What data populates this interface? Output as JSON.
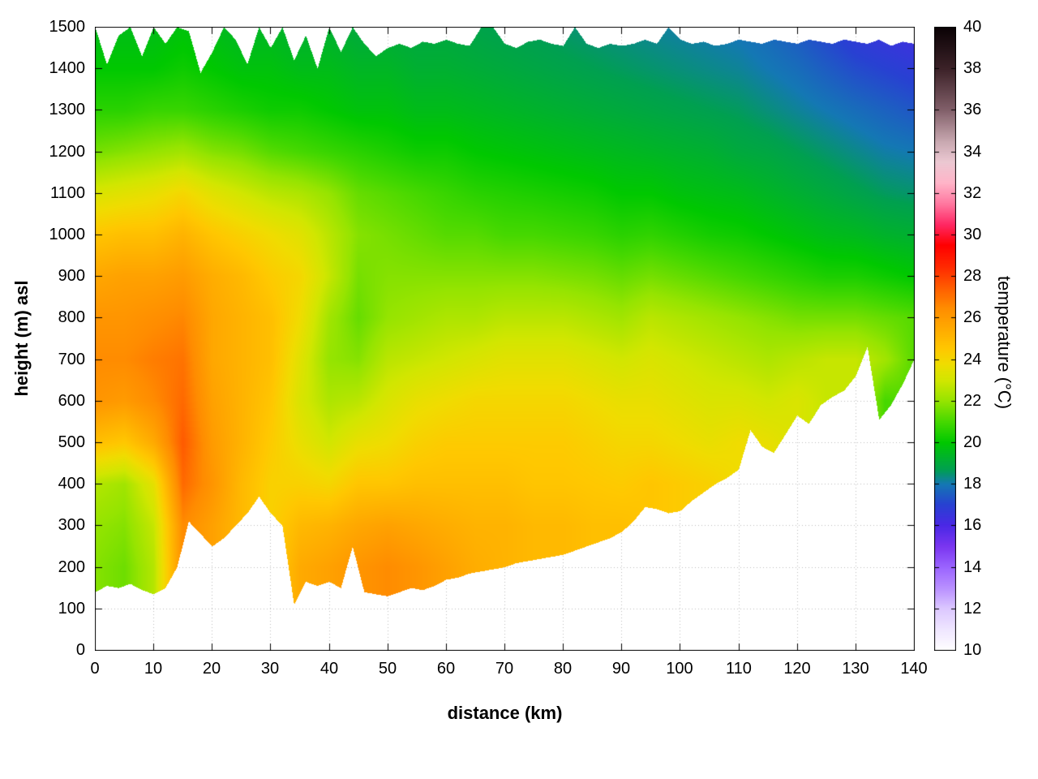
{
  "chart_data": {
    "type": "heatmap",
    "title": "",
    "xlabel": "distance (km)",
    "ylabel": "height (m) asl",
    "colorbar_label": "temperature (°C)",
    "xlim": [
      0,
      140
    ],
    "ylim": [
      0,
      1500
    ],
    "clim": [
      10,
      40
    ],
    "grid": true,
    "x_ticks": [
      0,
      10,
      20,
      30,
      40,
      50,
      60,
      70,
      80,
      90,
      100,
      110,
      120,
      130,
      140
    ],
    "y_ticks": [
      0,
      100,
      200,
      300,
      400,
      500,
      600,
      700,
      800,
      900,
      1000,
      1100,
      1200,
      1300,
      1400,
      1500
    ],
    "cb_ticks": [
      10,
      12,
      14,
      16,
      18,
      20,
      22,
      24,
      26,
      28,
      30,
      32,
      34,
      36,
      38,
      40
    ],
    "palette": [
      [
        10,
        "#ffffff"
      ],
      [
        11,
        "#efe6ff"
      ],
      [
        12,
        "#dcc8ff"
      ],
      [
        13,
        "#b990ff"
      ],
      [
        14,
        "#9b64ff"
      ],
      [
        15,
        "#7a36f0"
      ],
      [
        16,
        "#4b28e6"
      ],
      [
        17,
        "#2841d2"
      ],
      [
        18,
        "#1478b4"
      ],
      [
        18.7,
        "#00a050"
      ],
      [
        20,
        "#00c800"
      ],
      [
        21,
        "#46d800"
      ],
      [
        22,
        "#96e400"
      ],
      [
        23,
        "#d2e600"
      ],
      [
        23.8,
        "#f0dc00"
      ],
      [
        24.5,
        "#ffc800"
      ],
      [
        25.5,
        "#ffaa00"
      ],
      [
        26.5,
        "#ff8c00"
      ],
      [
        27.5,
        "#ff5a00"
      ],
      [
        28.5,
        "#ff2800"
      ],
      [
        29.5,
        "#ff0000"
      ],
      [
        30.5,
        "#ff2864"
      ],
      [
        31.5,
        "#ff78a0"
      ],
      [
        32.5,
        "#ffb4c8"
      ],
      [
        33.5,
        "#ecc8d2"
      ],
      [
        34.5,
        "#c8a8b0"
      ],
      [
        36,
        "#82606a"
      ],
      [
        38,
        "#3c2228"
      ],
      [
        40,
        "#0a0205"
      ]
    ],
    "x": [
      0,
      5,
      10,
      15,
      20,
      25,
      30,
      35,
      40,
      45,
      50,
      55,
      60,
      65,
      70,
      75,
      80,
      85,
      90,
      95,
      100,
      105,
      110,
      115,
      120,
      125,
      130,
      135,
      140
    ],
    "z": [
      0,
      100,
      200,
      300,
      400,
      500,
      600,
      700,
      800,
      900,
      1000,
      1100,
      1200,
      1300,
      1400,
      1500
    ],
    "temps": [
      [
        null,
        null,
        21.8,
        22.0,
        22.5,
        24.8,
        26.2,
        26.5,
        26.2,
        25.6,
        24.6,
        23.2,
        21.6,
        20.6,
        20.0,
        19.6
      ],
      [
        null,
        null,
        21.5,
        21.8,
        22.2,
        24.5,
        26.0,
        26.5,
        26.2,
        25.8,
        24.8,
        23.4,
        21.8,
        20.6,
        20.0,
        19.6
      ],
      [
        null,
        null,
        22.5,
        22.8,
        23.5,
        25.5,
        26.5,
        26.8,
        26.4,
        25.8,
        24.8,
        23.6,
        22.0,
        20.8,
        20.0,
        19.6
      ],
      [
        null,
        null,
        null,
        26.5,
        27.2,
        27.5,
        27.2,
        27.0,
        26.6,
        26.0,
        25.2,
        24.0,
        22.2,
        20.8,
        20.2,
        19.8
      ],
      [
        null,
        null,
        null,
        25.8,
        26.2,
        26.0,
        25.8,
        25.6,
        25.6,
        25.4,
        24.6,
        23.4,
        21.8,
        20.6,
        20.0,
        19.6
      ],
      [
        null,
        null,
        null,
        null,
        25.0,
        25.2,
        25.2,
        25.2,
        25.2,
        25.0,
        24.2,
        23.0,
        21.6,
        20.4,
        19.8,
        19.4
      ],
      [
        null,
        null,
        null,
        null,
        24.2,
        24.4,
        24.6,
        24.8,
        24.8,
        24.4,
        23.8,
        22.6,
        21.2,
        20.2,
        19.8,
        19.4
      ],
      [
        null,
        null,
        25.5,
        25.0,
        24.2,
        23.6,
        23.2,
        23.4,
        23.8,
        24.0,
        23.4,
        22.4,
        21.0,
        20.2,
        19.6,
        19.2
      ],
      [
        null,
        null,
        25.8,
        25.2,
        24.0,
        23.0,
        22.4,
        22.0,
        22.2,
        22.8,
        22.6,
        22.0,
        20.8,
        20.0,
        19.6,
        19.2
      ],
      [
        null,
        null,
        26.2,
        25.6,
        24.6,
        23.6,
        22.6,
        21.8,
        21.4,
        21.6,
        21.8,
        21.4,
        20.6,
        19.8,
        19.4,
        19.0
      ],
      [
        null,
        null,
        26.5,
        25.8,
        24.6,
        23.8,
        23.2,
        22.6,
        22.0,
        21.8,
        21.6,
        21.2,
        20.4,
        19.8,
        19.4,
        19.0
      ],
      [
        null,
        null,
        26.2,
        25.6,
        24.8,
        24.2,
        23.6,
        22.8,
        22.2,
        21.8,
        21.4,
        21.0,
        20.2,
        19.6,
        19.2,
        18.9
      ],
      [
        null,
        null,
        25.8,
        25.4,
        24.8,
        24.4,
        23.8,
        23.0,
        22.4,
        21.8,
        21.2,
        20.8,
        20.2,
        19.6,
        19.2,
        18.9
      ],
      [
        null,
        null,
        25.4,
        25.2,
        24.8,
        24.4,
        24.0,
        23.2,
        22.4,
        21.8,
        21.2,
        20.6,
        20.0,
        19.5,
        19.1,
        18.8
      ],
      [
        null,
        null,
        null,
        25.2,
        24.8,
        24.4,
        24.0,
        23.4,
        22.6,
        21.8,
        21.0,
        20.5,
        19.9,
        19.4,
        19.0,
        18.7
      ],
      [
        null,
        null,
        null,
        25.0,
        24.6,
        24.4,
        24.0,
        23.4,
        22.6,
        21.8,
        21.0,
        20.4,
        19.8,
        19.3,
        18.9,
        18.6
      ],
      [
        null,
        null,
        null,
        25.0,
        24.6,
        24.4,
        24.0,
        23.4,
        22.6,
        21.7,
        20.9,
        20.3,
        19.7,
        19.2,
        18.8,
        18.5
      ],
      [
        null,
        null,
        null,
        24.8,
        24.5,
        24.2,
        23.8,
        23.2,
        22.4,
        21.6,
        20.8,
        20.2,
        19.6,
        19.1,
        18.7,
        18.4
      ],
      [
        null,
        null,
        null,
        24.8,
        24.4,
        24.0,
        23.6,
        23.0,
        22.2,
        21.4,
        20.6,
        20.0,
        19.5,
        19.0,
        18.6,
        18.3
      ],
      [
        null,
        null,
        null,
        null,
        24.6,
        24.0,
        23.6,
        23.2,
        22.6,
        21.6,
        20.7,
        20.0,
        19.4,
        18.9,
        18.5,
        18.2
      ],
      [
        null,
        null,
        null,
        null,
        24.4,
        23.8,
        23.4,
        23.0,
        22.4,
        21.4,
        20.5,
        19.8,
        19.3,
        18.8,
        18.4,
        18.1
      ],
      [
        null,
        null,
        null,
        null,
        24.2,
        23.6,
        23.2,
        22.8,
        22.2,
        21.2,
        20.3,
        19.7,
        19.2,
        18.7,
        18.3,
        18.0
      ],
      [
        null,
        null,
        null,
        null,
        null,
        23.8,
        23.2,
        22.6,
        22.0,
        21.0,
        20.2,
        19.6,
        19.0,
        18.6,
        18.2,
        17.9
      ],
      [
        null,
        null,
        null,
        null,
        null,
        23.6,
        23.0,
        22.4,
        21.8,
        20.8,
        20.0,
        19.4,
        18.9,
        18.4,
        18.0,
        17.7
      ],
      [
        null,
        null,
        null,
        null,
        null,
        null,
        23.2,
        22.6,
        21.6,
        20.6,
        19.8,
        19.2,
        18.7,
        18.2,
        17.8,
        17.4
      ],
      [
        null,
        null,
        null,
        null,
        null,
        null,
        null,
        22.8,
        21.6,
        20.4,
        19.6,
        19.0,
        18.5,
        18.0,
        17.5,
        17.0
      ],
      [
        null,
        null,
        null,
        null,
        null,
        null,
        null,
        22.8,
        21.6,
        20.4,
        19.5,
        18.8,
        18.3,
        17.8,
        17.2,
        16.6
      ],
      [
        null,
        null,
        null,
        null,
        null,
        null,
        21.0,
        22.2,
        21.4,
        20.2,
        19.3,
        18.6,
        18.1,
        17.6,
        17.0,
        16.4
      ],
      [
        null,
        null,
        null,
        null,
        null,
        null,
        null,
        null,
        21.2,
        20.0,
        19.2,
        18.5,
        18.0,
        17.4,
        16.8,
        16.2
      ]
    ],
    "boundary_x_step": 2,
    "terrain": [
      140,
      155,
      150,
      160,
      145,
      135,
      150,
      200,
      310,
      280,
      250,
      270,
      300,
      330,
      370,
      330,
      300,
      110,
      165,
      155,
      165,
      150,
      250,
      140,
      135,
      130,
      140,
      150,
      145,
      155,
      170,
      175,
      185,
      190,
      195,
      200,
      210,
      215,
      220,
      225,
      230,
      240,
      250,
      260,
      270,
      285,
      310,
      345,
      340,
      330,
      335,
      360,
      380,
      400,
      415,
      435,
      530,
      490,
      475,
      520,
      565,
      545,
      590,
      610,
      625,
      660,
      730,
      555,
      590,
      640,
      700
    ],
    "top_boundary": [
      1500,
      1410,
      1480,
      1500,
      1430,
      1500,
      1460,
      1500,
      1490,
      1390,
      1440,
      1500,
      1470,
      1410,
      1500,
      1450,
      1500,
      1420,
      1480,
      1400,
      1500,
      1440,
      1500,
      1460,
      1430,
      1450,
      1460,
      1450,
      1465,
      1460,
      1470,
      1460,
      1455,
      1500,
      1500,
      1460,
      1450,
      1465,
      1470,
      1460,
      1455,
      1500,
      1460,
      1450,
      1460,
      1455,
      1460,
      1470,
      1460,
      1500,
      1470,
      1460,
      1465,
      1455,
      1460,
      1470,
      1465,
      1460,
      1470,
      1465,
      1460,
      1470,
      1465,
      1460,
      1470,
      1465,
      1460,
      1470,
      1455,
      1465,
      1460
    ]
  }
}
